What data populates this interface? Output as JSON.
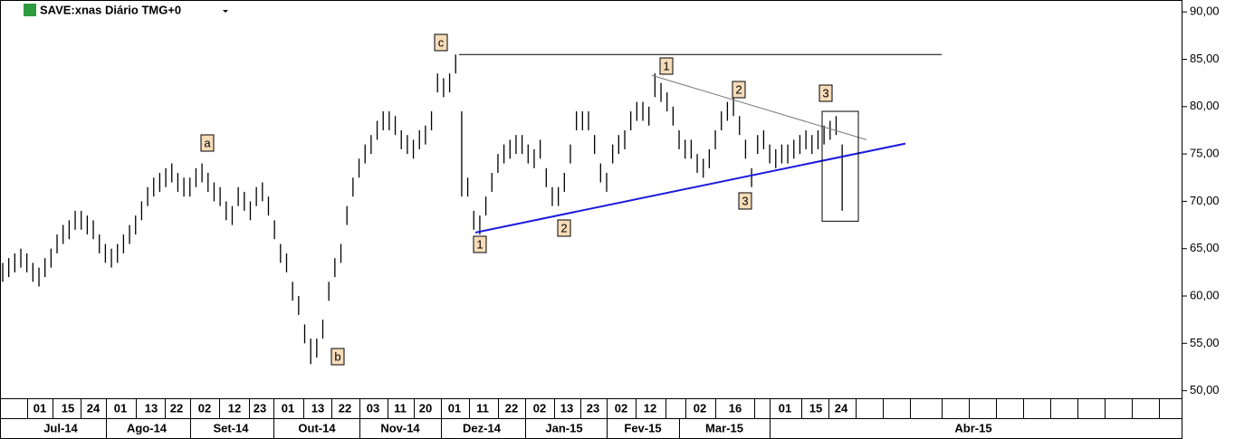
{
  "chart_data": {
    "type": "ohlc",
    "title": "SAVE:xnas Diário TMG+0",
    "color": "#000000",
    "high": [
      63.5,
      64,
      64.5,
      65,
      64.5,
      63.5,
      63,
      64,
      65,
      66.5,
      67.5,
      68,
      69,
      69,
      68.5,
      68,
      66.5,
      65.5,
      65,
      65.5,
      66.5,
      67.5,
      68.5,
      70,
      71.5,
      72.5,
      73,
      73.5,
      74,
      73,
      72.5,
      72.5,
      73.5,
      74,
      73,
      72,
      71.5,
      70,
      69.5,
      71.5,
      71,
      70,
      71.5,
      72,
      70.5,
      68,
      65.5,
      64.5,
      61.5,
      60,
      57,
      55.5,
      55.5,
      57.5,
      61.5,
      64,
      65.5,
      69.5,
      72.5,
      74.5,
      76,
      77,
      78.5,
      79.5,
      79.5,
      79,
      77.5,
      77,
      76.5,
      77.5,
      78,
      79.5,
      83.5,
      83,
      83.5,
      85.5,
      79.5,
      72.5,
      69,
      68.5,
      70.5,
      73,
      75,
      76,
      76.5,
      77,
      77,
      76,
      75.5,
      76.5,
      73.5,
      71.5,
      71.5,
      73,
      76,
      79.5,
      79.5,
      79.5,
      77,
      74,
      73,
      76,
      77,
      77.5,
      79.5,
      80.5,
      80.5,
      80,
      83.5,
      82.5,
      81.5,
      80,
      77.5,
      76.5,
      76.5,
      75,
      74.5,
      75.5,
      77.5,
      79.5,
      80.5,
      81,
      79,
      76.5,
      73.5,
      77,
      77.5,
      76,
      75.5,
      76,
      76,
      76.5,
      77,
      77.5,
      77,
      77.5,
      78,
      78.5,
      79,
      76
    ],
    "low": [
      61.5,
      62,
      62.5,
      63,
      62.5,
      61.5,
      61,
      62,
      63,
      64.5,
      65.5,
      66,
      67,
      67,
      66.5,
      66,
      64.5,
      63.5,
      63,
      63.5,
      64.5,
      65.5,
      66.5,
      68,
      69.5,
      70.5,
      71,
      71.5,
      72,
      71,
      70.5,
      70.5,
      71.5,
      72,
      71,
      70,
      69.5,
      68,
      67.5,
      69.5,
      69,
      68,
      69.5,
      70,
      68.5,
      66,
      63.5,
      62.5,
      59.5,
      58,
      55,
      52.8,
      53.5,
      55.5,
      59.5,
      62,
      63.5,
      67.5,
      70.5,
      72.5,
      74,
      75,
      76.5,
      77.5,
      77.5,
      77,
      75.5,
      75,
      74.5,
      75.5,
      76,
      77.5,
      81.5,
      81,
      81.5,
      83.5,
      70.5,
      70.5,
      67,
      66.5,
      68.5,
      71,
      73,
      74,
      74.5,
      75,
      75,
      74,
      73.5,
      74.5,
      71.5,
      69.5,
      69.5,
      71,
      74,
      77.5,
      77.5,
      77.5,
      75,
      72,
      71,
      74,
      75,
      75.5,
      77.5,
      78.5,
      78.5,
      78,
      81,
      80.5,
      79.5,
      78,
      75.5,
      74.5,
      74.5,
      73,
      72.5,
      73.5,
      75.5,
      77.5,
      78.5,
      79,
      77,
      74.5,
      71.5,
      75,
      75.5,
      74,
      73.5,
      74,
      74,
      74.5,
      75,
      75.5,
      75,
      75.5,
      76,
      76.5,
      77,
      69
    ],
    "ylim": [
      49.2,
      91.26
    ],
    "yticks": [
      {
        "value": 50,
        "label": "50,00"
      },
      {
        "value": 55,
        "label": "55,00"
      },
      {
        "value": 60,
        "label": "60,00"
      },
      {
        "value": 65,
        "label": "65,00"
      },
      {
        "value": 70,
        "label": "70,00"
      },
      {
        "value": 75,
        "label": "75,00"
      },
      {
        "value": 80,
        "label": "80,00"
      },
      {
        "value": 85,
        "label": "85,00"
      },
      {
        "value": 90,
        "label": "90,00"
      }
    ],
    "day_labels": [
      "01",
      "15",
      "24",
      "01",
      "13",
      "22",
      "02",
      "12",
      "23",
      "01",
      "13",
      "22",
      "03",
      "11",
      "20",
      "01",
      "11",
      "22",
      "02",
      "13",
      "23",
      "02",
      "12",
      "02",
      "16",
      "01",
      "15",
      "24"
    ],
    "month_labels": [
      "Jul-14",
      "Ago-14",
      "Set-14",
      "Out-14",
      "Nov-14",
      "Dez-14",
      "Jan-15",
      "Fev-15",
      "Mar-15",
      "Abr-15"
    ],
    "annotations": [
      "a",
      "b",
      "c",
      "1",
      "2",
      "1",
      "2",
      "3",
      "3"
    ],
    "resistance": 85.5,
    "trendline": [
      66.7,
      76.1
    ],
    "downtrend": [
      83.3,
      76.5
    ],
    "box": [
      79.5,
      67.9
    ]
  }
}
